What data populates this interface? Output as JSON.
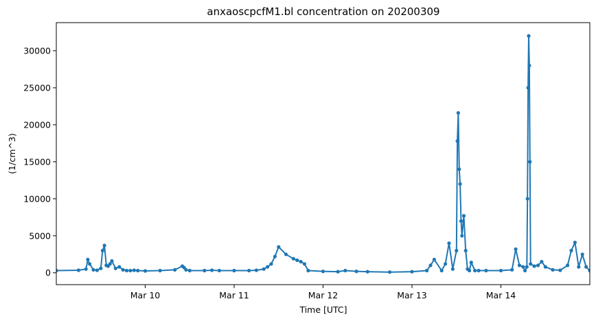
{
  "chart_data": {
    "type": "line",
    "title": "anxaoscpcfM1.bl concentration on 20200309",
    "xlabel": "Time [UTC]",
    "ylabel": "(1/cm^3)",
    "xlim": [
      "2020-03-09T00:00",
      "2020-03-15T00:00"
    ],
    "ylim": [
      -1600,
      33800
    ],
    "x_ticks": [
      "2020-03-10",
      "2020-03-11",
      "2020-03-12",
      "2020-03-13",
      "2020-03-14"
    ],
    "x_tick_labels": [
      "Mar 10",
      "Mar 11",
      "Mar 12",
      "Mar 13",
      "Mar 14"
    ],
    "y_ticks": [
      0,
      5000,
      10000,
      15000,
      20000,
      25000,
      30000
    ],
    "y_tick_labels": [
      "0",
      "5000",
      "10000",
      "15000",
      "20000",
      "25000",
      "30000"
    ],
    "grid": false,
    "marker": "point",
    "series_color": "#1f77b4",
    "series": [
      {
        "x": [
          "2020-03-09T00:00",
          "2020-03-09T06:00",
          "2020-03-09T08:00",
          "2020-03-09T08:30",
          "2020-03-09T09:00",
          "2020-03-09T10:00",
          "2020-03-09T11:00",
          "2020-03-09T12:00",
          "2020-03-09T12:30",
          "2020-03-09T13:00",
          "2020-03-09T13:30",
          "2020-03-09T14:00",
          "2020-03-09T14:30",
          "2020-03-09T15:00",
          "2020-03-09T16:00",
          "2020-03-09T17:00",
          "2020-03-09T18:00",
          "2020-03-09T19:00",
          "2020-03-09T20:00",
          "2020-03-09T21:00",
          "2020-03-09T22:00",
          "2020-03-10T00:00",
          "2020-03-10T04:00",
          "2020-03-10T08:00",
          "2020-03-10T10:00",
          "2020-03-10T10:30",
          "2020-03-10T11:00",
          "2020-03-10T12:00",
          "2020-03-10T16:00",
          "2020-03-10T18:00",
          "2020-03-10T20:00",
          "2020-03-11T00:00",
          "2020-03-11T04:00",
          "2020-03-11T06:00",
          "2020-03-11T08:00",
          "2020-03-11T09:00",
          "2020-03-11T10:00",
          "2020-03-11T11:00",
          "2020-03-11T12:00",
          "2020-03-11T14:00",
          "2020-03-11T16:00",
          "2020-03-11T17:00",
          "2020-03-11T18:00",
          "2020-03-11T19:00",
          "2020-03-11T20:00",
          "2020-03-12T00:00",
          "2020-03-12T04:00",
          "2020-03-12T06:00",
          "2020-03-12T09:00",
          "2020-03-12T12:00",
          "2020-03-12T18:00",
          "2020-03-13T00:00",
          "2020-03-13T04:00",
          "2020-03-13T05:00",
          "2020-03-13T06:00",
          "2020-03-13T08:00",
          "2020-03-13T09:00",
          "2020-03-13T10:00",
          "2020-03-13T11:00",
          "2020-03-13T12:00",
          "2020-03-13T12:15",
          "2020-03-13T12:30",
          "2020-03-13T12:45",
          "2020-03-13T13:00",
          "2020-03-13T13:15",
          "2020-03-13T13:30",
          "2020-03-13T14:00",
          "2020-03-13T14:30",
          "2020-03-13T15:00",
          "2020-03-13T15:30",
          "2020-03-13T16:00",
          "2020-03-13T17:00",
          "2020-03-13T18:00",
          "2020-03-13T20:00",
          "2020-03-14T00:00",
          "2020-03-14T03:00",
          "2020-03-14T04:00",
          "2020-03-14T05:00",
          "2020-03-14T06:00",
          "2020-03-14T06:30",
          "2020-03-14T07:00",
          "2020-03-14T07:10",
          "2020-03-14T07:20",
          "2020-03-14T07:30",
          "2020-03-14T07:40",
          "2020-03-14T07:50",
          "2020-03-14T08:00",
          "2020-03-14T09:00",
          "2020-03-14T10:00",
          "2020-03-14T11:00",
          "2020-03-14T12:00",
          "2020-03-14T14:00",
          "2020-03-14T16:00",
          "2020-03-14T18:00",
          "2020-03-14T19:00",
          "2020-03-14T20:00",
          "2020-03-14T21:00",
          "2020-03-14T22:00",
          "2020-03-14T23:00",
          "2020-03-15T00:00"
        ],
        "y": [
          300,
          350,
          500,
          1800,
          1200,
          400,
          350,
          600,
          3000,
          3700,
          1000,
          900,
          1200,
          1600,
          600,
          800,
          400,
          300,
          300,
          350,
          300,
          250,
          300,
          400,
          900,
          700,
          400,
          300,
          300,
          350,
          300,
          300,
          300,
          350,
          500,
          800,
          1200,
          2200,
          3500,
          2500,
          1900,
          1700,
          1500,
          1200,
          300,
          200,
          150,
          300,
          200,
          150,
          100,
          150,
          300,
          1000,
          1800,
          300,
          1200,
          4000,
          500,
          3000,
          17800,
          21600,
          14000,
          12000,
          7000,
          5000,
          7700,
          3000,
          500,
          300,
          1400,
          300,
          300,
          300,
          300,
          400,
          3200,
          1000,
          800,
          300,
          800,
          10000,
          25000,
          32000,
          28000,
          15000,
          1200,
          900,
          1000,
          1500,
          800,
          400,
          350,
          1000,
          3000,
          4100,
          800,
          2500,
          800,
          300
        ]
      }
    ]
  }
}
